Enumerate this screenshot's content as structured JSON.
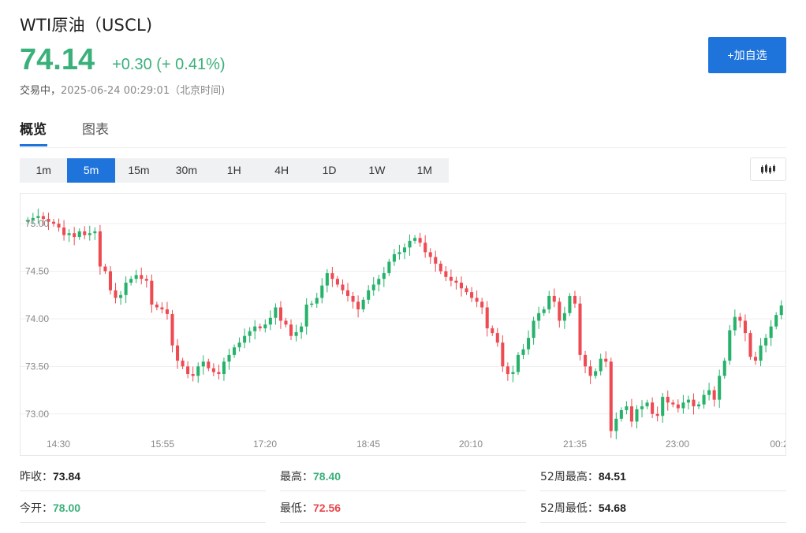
{
  "header": {
    "title": "WTI原油（USCL)",
    "price": "74.14",
    "change": "+0.30 (+ 0.41%)",
    "status": "交易中，",
    "timestamp": "2025-06-24 00:29:01（北京时间)"
  },
  "actions": {
    "add_watchlist": "+加自选"
  },
  "tabs": [
    {
      "label": "概览"
    },
    {
      "label": "图表"
    }
  ],
  "periods": [
    {
      "label": "1m"
    },
    {
      "label": "5m"
    },
    {
      "label": "15m"
    },
    {
      "label": "30m"
    },
    {
      "label": "1H"
    },
    {
      "label": "4H"
    },
    {
      "label": "1D"
    },
    {
      "label": "1W"
    },
    {
      "label": "1M"
    }
  ],
  "active_period": "5m",
  "colors": {
    "up": "#26b26a",
    "down": "#ee4a52",
    "accent": "#1f74dc",
    "price": "#3ab07a"
  },
  "chart_data": {
    "type": "candlestick",
    "y_ticks": [
      "75.00",
      "74.50",
      "74.00",
      "73.50",
      "73.00"
    ],
    "x_ticks": [
      "14:30",
      "15:55",
      "17:20",
      "18:45",
      "20:10",
      "21:35",
      "23:00",
      "00:2"
    ],
    "ylim": [
      72.75,
      75.15
    ],
    "grid": true,
    "close_series": [
      75.04,
      75.06,
      75.08,
      75.05,
      75.02,
      75.0,
      74.96,
      74.88,
      74.9,
      74.86,
      74.92,
      74.88,
      74.9,
      74.92,
      74.55,
      74.5,
      74.3,
      74.22,
      74.25,
      74.38,
      74.42,
      74.46,
      74.42,
      74.4,
      74.15,
      74.12,
      74.1,
      74.05,
      73.72,
      73.56,
      73.5,
      73.42,
      73.4,
      73.5,
      73.55,
      73.48,
      73.44,
      73.42,
      73.55,
      73.62,
      73.7,
      73.75,
      73.82,
      73.87,
      73.92,
      73.9,
      73.94,
      74.01,
      74.12,
      73.98,
      73.94,
      73.82,
      73.86,
      73.92,
      74.15,
      74.16,
      74.22,
      74.35,
      74.48,
      74.42,
      74.36,
      74.3,
      74.24,
      74.18,
      74.1,
      74.2,
      74.3,
      74.36,
      74.42,
      74.48,
      74.6,
      74.68,
      74.7,
      74.75,
      74.82,
      74.85,
      74.8,
      74.7,
      74.65,
      74.58,
      74.5,
      74.44,
      74.4,
      74.38,
      74.32,
      74.28,
      74.22,
      74.18,
      74.12,
      73.9,
      73.85,
      73.75,
      73.5,
      73.42,
      73.44,
      73.62,
      73.68,
      73.8,
      73.98,
      74.06,
      74.1,
      74.24,
      74.18,
      73.98,
      74.06,
      74.24,
      74.16,
      73.62,
      73.5,
      73.4,
      73.45,
      73.58,
      73.55,
      72.82,
      72.95,
      73.04,
      73.08,
      72.92,
      73.05,
      73.08,
      73.12,
      73.0,
      72.98,
      73.18,
      73.12,
      73.1,
      73.06,
      73.12,
      73.15,
      73.08,
      73.1,
      73.2,
      73.25,
      73.15,
      73.4,
      73.56,
      73.88,
      74.02,
      73.98,
      73.85,
      73.6,
      73.56,
      73.72,
      73.8,
      73.92,
      74.04,
      74.14
    ]
  },
  "stats": [
    {
      "label": "昨收：",
      "value": "73.84",
      "tone": ""
    },
    {
      "label": "最高：",
      "value": "78.40",
      "tone": "green"
    },
    {
      "label": "52周最高：",
      "value": "84.51",
      "tone": ""
    },
    {
      "label": "今开：",
      "value": "78.00",
      "tone": "green"
    },
    {
      "label": "最低：",
      "value": "72.56",
      "tone": "red"
    },
    {
      "label": "52周最低：",
      "value": "54.68",
      "tone": ""
    }
  ]
}
